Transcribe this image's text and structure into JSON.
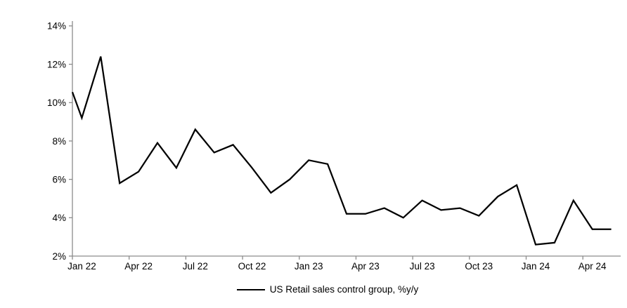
{
  "chart_data": {
    "type": "line",
    "title": "",
    "legend": {
      "label": "US Retail sales control group, %y/y",
      "position": "bottom-center"
    },
    "categories": [
      "Jan 22",
      "Feb 22",
      "Mar 22",
      "Apr 22",
      "May 22",
      "Jun 22",
      "Jul 22",
      "Aug 22",
      "Sep 22",
      "Oct 22",
      "Nov 22",
      "Dec 22",
      "Jan 23",
      "Feb 23",
      "Mar 23",
      "Apr 23",
      "May 23",
      "Jun 23",
      "Jul 23",
      "Aug 23",
      "Sep 23",
      "Oct 23",
      "Nov 23",
      "Dec 23",
      "Jan 24",
      "Feb 24",
      "Mar 24",
      "Apr 24",
      "May 24"
    ],
    "series": [
      {
        "name": "US Retail sales control group, %y/y",
        "color": "#000000",
        "values": [
          9.2,
          12.4,
          5.8,
          6.4,
          7.9,
          6.6,
          8.6,
          7.4,
          7.8,
          6.6,
          5.3,
          6.0,
          7.0,
          6.8,
          4.2,
          4.2,
          4.5,
          4.0,
          4.9,
          4.4,
          4.5,
          4.1,
          5.1,
          5.7,
          2.6,
          2.7,
          4.9,
          3.4,
          3.4
        ]
      }
    ],
    "edge_clip_start_value": 10.55,
    "ylim": [
      2,
      14
    ],
    "y_tick_values": [
      14,
      12,
      10,
      8,
      6,
      4,
      2
    ],
    "y_tick_labels": [
      "14%",
      "12%",
      "10%",
      "8%",
      "6%",
      "4%",
      "2%"
    ],
    "x_tick_labels": [
      "Jan 22",
      "Apr 22",
      "Jul 22",
      "Oct 22",
      "Jan 23",
      "Apr 23",
      "Jul 23",
      "Oct 23",
      "Jan 24",
      "Apr 24"
    ],
    "x_tick_every": 3,
    "grid": false,
    "axis_color": "#8c8c8c",
    "text_color": "#000000",
    "line_width": 2.25
  }
}
